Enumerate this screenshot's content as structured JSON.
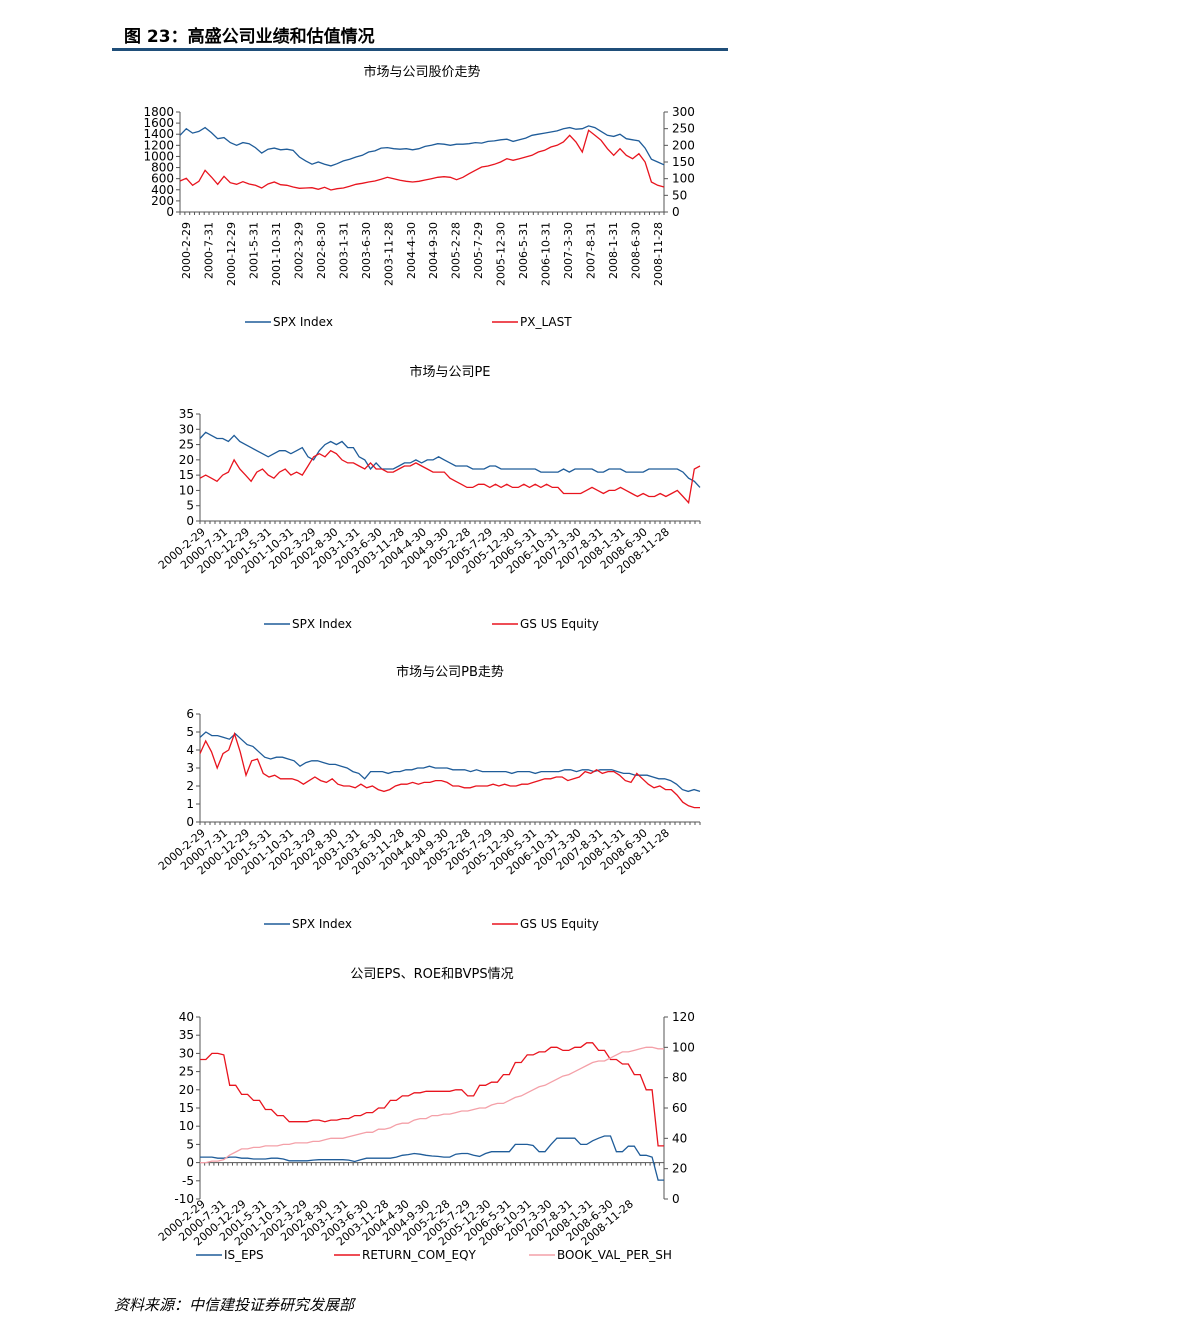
{
  "figure": {
    "title": "图 23：高盛公司业绩和估值情况",
    "source": "资料来源：中信建投证券研究发展部"
  },
  "chart_data": [
    {
      "type": "line",
      "title": "市场与公司股价走势",
      "x_tick_labels": [
        "2000-2-29",
        "2000-7-31",
        "2000-12-29",
        "2001-5-31",
        "2001-10-31",
        "2002-3-29",
        "2002-8-30",
        "2003-1-31",
        "2003-6-30",
        "2003-11-28",
        "2004-4-30",
        "2004-9-30",
        "2005-2-28",
        "2005-7-29",
        "2005-12-30",
        "2006-5-31",
        "2006-10-31",
        "2007-3-30",
        "2007-8-31",
        "2008-1-31",
        "2008-6-30",
        "2008-11-28"
      ],
      "y_left": {
        "range": [
          0,
          1800
        ],
        "ticks": [
          "1800",
          "1600",
          "1400",
          "1200",
          "1000",
          "800",
          "600",
          "400",
          "200",
          "0"
        ]
      },
      "y_right": {
        "range": [
          0,
          300
        ],
        "ticks": [
          "300",
          "250",
          "200",
          "150",
          "100",
          "50",
          "0"
        ]
      },
      "series": [
        {
          "name": "SPX Index",
          "axis": "left",
          "color": "#1f5c99",
          "values": [
            1380,
            1500,
            1420,
            1450,
            1520,
            1430,
            1320,
            1340,
            1250,
            1200,
            1250,
            1230,
            1160,
            1060,
            1130,
            1150,
            1120,
            1130,
            1110,
            990,
            920,
            860,
            900,
            860,
            830,
            870,
            920,
            950,
            990,
            1020,
            1080,
            1100,
            1150,
            1160,
            1140,
            1130,
            1140,
            1120,
            1140,
            1180,
            1200,
            1230,
            1220,
            1200,
            1220,
            1220,
            1230,
            1250,
            1240,
            1270,
            1280,
            1300,
            1310,
            1270,
            1300,
            1330,
            1380,
            1400,
            1420,
            1440,
            1460,
            1500,
            1520,
            1490,
            1500,
            1550,
            1520,
            1450,
            1380,
            1360,
            1400,
            1320,
            1300,
            1280,
            1150,
            950,
            900,
            850
          ]
        },
        {
          "name": "PX_LAST",
          "axis": "right",
          "color": "#e8141e",
          "values": [
            93,
            101,
            80,
            92,
            125,
            105,
            83,
            107,
            88,
            83,
            91,
            84,
            80,
            72,
            84,
            90,
            82,
            80,
            75,
            71,
            72,
            73,
            68,
            74,
            66,
            70,
            72,
            77,
            83,
            86,
            90,
            93,
            98,
            104,
            100,
            95,
            92,
            90,
            92,
            96,
            100,
            104,
            106,
            104,
            97,
            104,
            115,
            125,
            135,
            138,
            143,
            150,
            160,
            155,
            160,
            165,
            170,
            180,
            185,
            195,
            200,
            210,
            230,
            210,
            180,
            245,
            230,
            215,
            190,
            170,
            190,
            170,
            160,
            175,
            150,
            90,
            80,
            75
          ]
        }
      ]
    },
    {
      "type": "line",
      "title": "市场与公司PE",
      "x_tick_labels": [
        "2000-2-29",
        "2000-7-31",
        "2000-12-29",
        "2001-5-31",
        "2001-10-31",
        "2002-3-29",
        "2002-8-30",
        "2003-1-31",
        "2003-6-30",
        "2003-11-28",
        "2004-4-30",
        "2004-9-30",
        "2005-2-28",
        "2005-7-29",
        "2005-12-30",
        "2006-5-31",
        "2006-10-31",
        "2007-3-30",
        "2007-8-31",
        "2008-1-31",
        "2008-6-30",
        "2008-11-28"
      ],
      "y_left": {
        "range": [
          0,
          35
        ],
        "ticks": [
          "35",
          "30",
          "25",
          "20",
          "15",
          "10",
          "5",
          "0"
        ]
      },
      "series": [
        {
          "name": "SPX Index",
          "color": "#1f5c99",
          "values": [
            27,
            29,
            28,
            27,
            27,
            26,
            28,
            26,
            25,
            24,
            23,
            22,
            21,
            22,
            23,
            23,
            22,
            23,
            24,
            21,
            20,
            23,
            25,
            26,
            25,
            26,
            24,
            24,
            21,
            20,
            17,
            19,
            17,
            17,
            17,
            18,
            19,
            19,
            20,
            19,
            20,
            20,
            21,
            20,
            19,
            18,
            18,
            18,
            17,
            17,
            17,
            18,
            18,
            17,
            17,
            17,
            17,
            17,
            17,
            17,
            16,
            16,
            16,
            16,
            17,
            16,
            17,
            17,
            17,
            17,
            16,
            16,
            17,
            17,
            17,
            16,
            16,
            16,
            16,
            17,
            17,
            17,
            17,
            17,
            17,
            16,
            14,
            13,
            11
          ]
        },
        {
          "name": "GS US Equity",
          "color": "#e8141e",
          "values": [
            14,
            15,
            14,
            13,
            15,
            16,
            20,
            17,
            15,
            13,
            16,
            17,
            15,
            14,
            16,
            17,
            15,
            16,
            15,
            18,
            21,
            22,
            21,
            23,
            22,
            20,
            19,
            19,
            18,
            17,
            19,
            17,
            17,
            16,
            16,
            17,
            18,
            18,
            19,
            18,
            17,
            16,
            16,
            16,
            14,
            13,
            12,
            11,
            11,
            12,
            12,
            11,
            12,
            11,
            12,
            11,
            11,
            12,
            11,
            12,
            11,
            12,
            11,
            11,
            9,
            9,
            9,
            9,
            10,
            11,
            10,
            9,
            10,
            10,
            11,
            10,
            9,
            8,
            9,
            8,
            8,
            9,
            8,
            9,
            10,
            8,
            6,
            17,
            18
          ]
        }
      ]
    },
    {
      "type": "line",
      "title": "市场与公司PB走势",
      "x_tick_labels": [
        "2000-2-29",
        "2000-7-31",
        "2000-12-29",
        "2001-5-31",
        "2001-10-31",
        "2002-3-29",
        "2002-8-30",
        "2003-1-31",
        "2003-6-30",
        "2003-11-28",
        "2004-4-30",
        "2004-9-30",
        "2005-2-28",
        "2005-7-29",
        "2005-12-30",
        "2006-5-31",
        "2006-10-31",
        "2007-3-30",
        "2007-8-31",
        "2008-1-31",
        "2008-6-30",
        "2008-11-28"
      ],
      "y_left": {
        "range": [
          0,
          6
        ],
        "ticks": [
          "6",
          "5",
          "4",
          "3",
          "2",
          "1",
          "0"
        ]
      },
      "series": [
        {
          "name": "SPX Index",
          "color": "#1f5c99",
          "values": [
            4.7,
            5.0,
            4.8,
            4.8,
            4.7,
            4.6,
            4.9,
            4.6,
            4.3,
            4.2,
            3.9,
            3.6,
            3.5,
            3.6,
            3.6,
            3.5,
            3.4,
            3.1,
            3.3,
            3.4,
            3.4,
            3.3,
            3.2,
            3.2,
            3.1,
            3.0,
            2.8,
            2.7,
            2.4,
            2.8,
            2.8,
            2.8,
            2.7,
            2.8,
            2.8,
            2.9,
            2.9,
            3.0,
            3.0,
            3.1,
            3.0,
            3.0,
            3.0,
            2.9,
            2.9,
            2.9,
            2.8,
            2.9,
            2.8,
            2.8,
            2.8,
            2.8,
            2.8,
            2.7,
            2.8,
            2.8,
            2.8,
            2.7,
            2.8,
            2.8,
            2.8,
            2.8,
            2.9,
            2.9,
            2.8,
            2.9,
            2.9,
            2.8,
            2.9,
            2.9,
            2.9,
            2.8,
            2.7,
            2.7,
            2.6,
            2.6,
            2.6,
            2.5,
            2.4,
            2.4,
            2.3,
            2.1,
            1.8,
            1.7,
            1.8,
            1.7
          ]
        },
        {
          "name": "GS US Equity",
          "color": "#e8141e",
          "values": [
            3.8,
            4.5,
            3.9,
            3.0,
            3.8,
            4.0,
            4.9,
            3.9,
            2.6,
            3.4,
            3.5,
            2.7,
            2.5,
            2.6,
            2.4,
            2.4,
            2.4,
            2.3,
            2.1,
            2.3,
            2.5,
            2.3,
            2.2,
            2.4,
            2.1,
            2.0,
            2.0,
            1.9,
            2.1,
            1.9,
            2.0,
            1.8,
            1.7,
            1.8,
            2.0,
            2.1,
            2.1,
            2.2,
            2.1,
            2.2,
            2.2,
            2.3,
            2.3,
            2.2,
            2.0,
            2.0,
            1.9,
            1.9,
            2.0,
            2.0,
            2.0,
            2.1,
            2.0,
            2.1,
            2.0,
            2.0,
            2.1,
            2.1,
            2.2,
            2.3,
            2.4,
            2.4,
            2.5,
            2.5,
            2.3,
            2.4,
            2.5,
            2.8,
            2.7,
            2.9,
            2.7,
            2.8,
            2.8,
            2.6,
            2.3,
            2.2,
            2.7,
            2.4,
            2.1,
            1.9,
            2.0,
            1.8,
            1.8,
            1.5,
            1.1,
            0.9,
            0.8,
            0.8
          ]
        }
      ]
    },
    {
      "type": "line",
      "title": "公司EPS、ROE和BVPS情况",
      "x_tick_labels": [
        "2000-2-29",
        "2000-7-31",
        "2000-12-29",
        "2001-5-31",
        "2001-10-31",
        "2002-3-29",
        "2002-8-30",
        "2003-1-31",
        "2003-6-30",
        "2003-11-28",
        "2004-4-30",
        "2004-9-30",
        "2005-2-28",
        "2005-7-29",
        "2005-12-30",
        "2006-5-31",
        "2006-10-31",
        "2007-3-30",
        "2007-8-31",
        "2008-1-31",
        "2008-6-30",
        "2008-11-28"
      ],
      "y_left": {
        "range": [
          -10,
          40
        ],
        "ticks": [
          "40",
          "35",
          "30",
          "25",
          "20",
          "15",
          "10",
          "5",
          "0",
          "-5",
          "-10"
        ]
      },
      "y_right": {
        "range": [
          0,
          120
        ],
        "ticks": [
          "120",
          "100",
          "80",
          "60",
          "40",
          "20",
          "0"
        ]
      },
      "series": [
        {
          "name": "IS_EPS",
          "axis": "left",
          "color": "#1f5c99",
          "values": [
            1.5,
            1.5,
            1.5,
            1.2,
            1.2,
            1.5,
            1.5,
            1.2,
            1.2,
            1.0,
            1.0,
            1.0,
            1.2,
            1.2,
            1.0,
            0.5,
            0.5,
            0.5,
            0.5,
            0.7,
            0.8,
            0.8,
            0.8,
            0.8,
            0.8,
            0.7,
            0.3,
            0.8,
            1.2,
            1.2,
            1.2,
            1.2,
            1.2,
            1.5,
            2.0,
            2.2,
            2.5,
            2.3,
            2.0,
            1.8,
            1.7,
            1.5,
            1.5,
            2.3,
            2.5,
            2.5,
            2.0,
            1.7,
            2.5,
            3.0,
            3.0,
            3.0,
            3.0,
            5.0,
            5.0,
            5.0,
            4.7,
            3.0,
            3.0,
            5.0,
            6.7,
            6.7,
            6.7,
            6.7,
            5.0,
            5.0,
            6.0,
            6.7,
            7.3,
            7.3,
            3.0,
            3.0,
            4.5,
            4.5,
            2.0,
            2.0,
            1.5,
            -4.8,
            -4.8
          ]
        },
        {
          "name": "RETURN_COM_EQY",
          "axis": "right",
          "color": "#e8141e",
          "values": [
            92,
            92,
            96,
            96,
            95,
            75,
            75,
            69,
            69,
            65,
            65,
            59,
            59,
            55,
            55,
            51,
            51,
            51,
            51,
            52,
            52,
            51,
            52,
            52,
            53,
            53,
            55,
            55,
            57,
            57,
            60,
            60,
            65,
            65,
            68,
            68,
            70,
            70,
            71,
            71,
            71,
            71,
            71,
            72,
            72,
            68,
            68,
            75,
            75,
            77,
            77,
            82,
            82,
            90,
            90,
            95,
            95,
            97,
            97,
            100,
            100,
            98,
            98,
            100,
            100,
            103,
            103,
            98,
            98,
            92,
            92,
            89,
            89,
            82,
            82,
            72,
            72,
            35,
            35
          ]
        },
        {
          "name": "BOOK_VAL_PER_SH",
          "axis": "right",
          "color": "#f4a0a8",
          "values": [
            24,
            24,
            25,
            25,
            26,
            29,
            31,
            33,
            33,
            34,
            34,
            35,
            35,
            35,
            36,
            36,
            37,
            37,
            37,
            38,
            38,
            39,
            40,
            40,
            40,
            41,
            42,
            43,
            44,
            44,
            46,
            46,
            47,
            49,
            50,
            50,
            52,
            53,
            53,
            55,
            55,
            56,
            56,
            57,
            58,
            58,
            59,
            60,
            60,
            62,
            63,
            63,
            65,
            67,
            68,
            70,
            72,
            74,
            75,
            77,
            79,
            81,
            82,
            84,
            86,
            88,
            90,
            91,
            91,
            93,
            95,
            97,
            97,
            98,
            99,
            100,
            100,
            99,
            99
          ]
        }
      ]
    }
  ]
}
